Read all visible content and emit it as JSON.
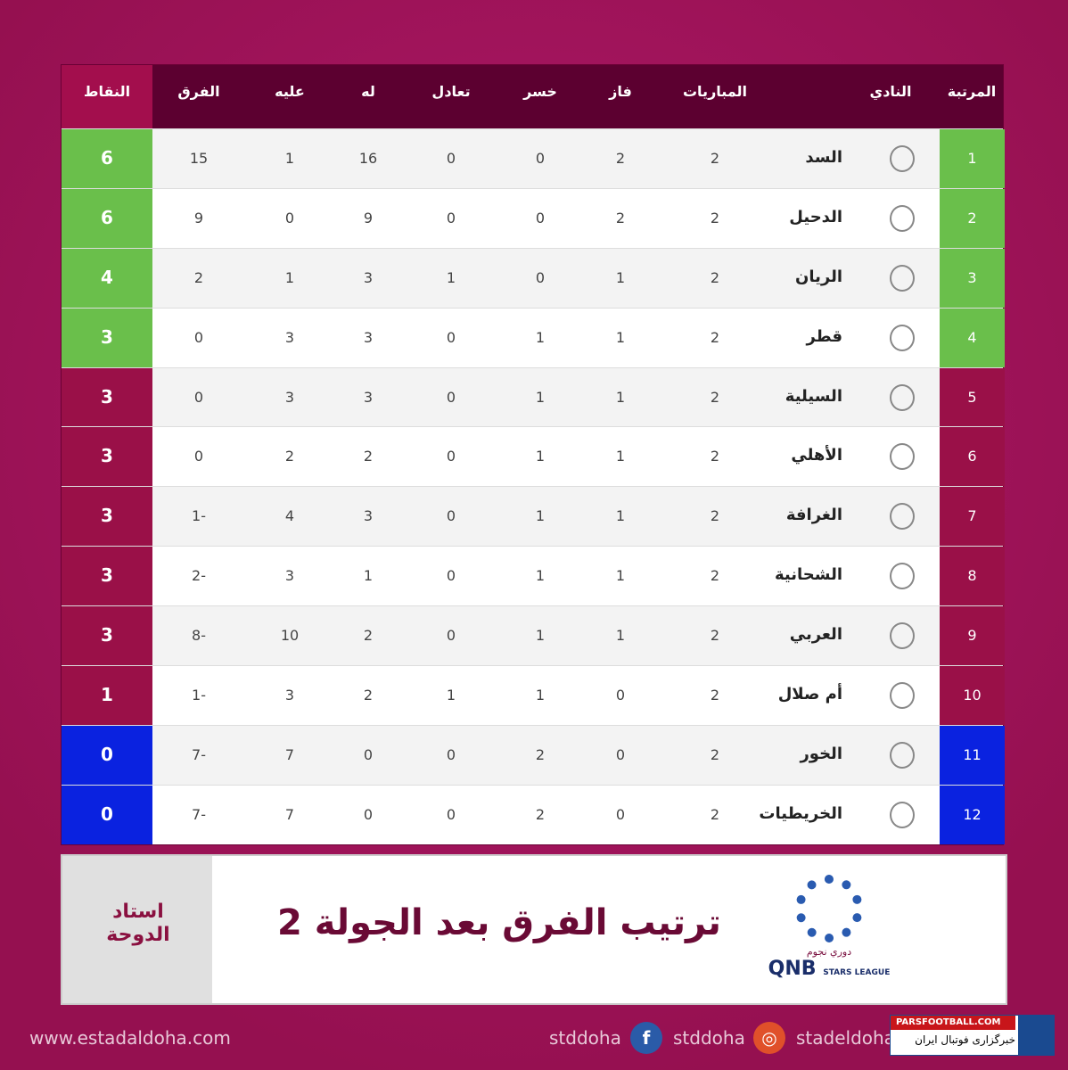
{
  "header": {
    "rank": "المرتبة",
    "club": "النادي",
    "played": "المباريات",
    "won": "فاز",
    "lost": "خسر",
    "draw": "تعادل",
    "for": "له",
    "against": "عليه",
    "diff": "الفرق",
    "points": "النقاط"
  },
  "colors": {
    "green": "#6abf4b",
    "maroon": "#9a1048",
    "blue": "#0a22e0"
  },
  "rows": [
    {
      "rank": "1",
      "club": "السد",
      "played": "2",
      "won": "2",
      "lost": "0",
      "draw": "0",
      "for": "16",
      "against": "1",
      "diff": "15",
      "points": "6",
      "zone": "green"
    },
    {
      "rank": "2",
      "club": "الدحيل",
      "played": "2",
      "won": "2",
      "lost": "0",
      "draw": "0",
      "for": "9",
      "against": "0",
      "diff": "9",
      "points": "6",
      "zone": "green"
    },
    {
      "rank": "3",
      "club": "الريان",
      "played": "2",
      "won": "1",
      "lost": "0",
      "draw": "1",
      "for": "3",
      "against": "1",
      "diff": "2",
      "points": "4",
      "zone": "green"
    },
    {
      "rank": "4",
      "club": "قطر",
      "played": "2",
      "won": "1",
      "lost": "1",
      "draw": "0",
      "for": "3",
      "against": "3",
      "diff": "0",
      "points": "3",
      "zone": "green"
    },
    {
      "rank": "5",
      "club": "السيلية",
      "played": "2",
      "won": "1",
      "lost": "1",
      "draw": "0",
      "for": "3",
      "against": "3",
      "diff": "0",
      "points": "3",
      "zone": "maroon"
    },
    {
      "rank": "6",
      "club": "الأهلي",
      "played": "2",
      "won": "1",
      "lost": "1",
      "draw": "0",
      "for": "2",
      "against": "2",
      "diff": "0",
      "points": "3",
      "zone": "maroon"
    },
    {
      "rank": "7",
      "club": "الغرافة",
      "played": "2",
      "won": "1",
      "lost": "1",
      "draw": "0",
      "for": "3",
      "against": "4",
      "diff": "1-",
      "points": "3",
      "zone": "maroon"
    },
    {
      "rank": "8",
      "club": "الشحانية",
      "played": "2",
      "won": "1",
      "lost": "1",
      "draw": "0",
      "for": "1",
      "against": "3",
      "diff": "2-",
      "points": "3",
      "zone": "maroon"
    },
    {
      "rank": "9",
      "club": "العربي",
      "played": "2",
      "won": "1",
      "lost": "1",
      "draw": "0",
      "for": "2",
      "against": "10",
      "diff": "8-",
      "points": "3",
      "zone": "maroon"
    },
    {
      "rank": "10",
      "club": "أم صلال",
      "played": "2",
      "won": "0",
      "lost": "1",
      "draw": "1",
      "for": "2",
      "against": "3",
      "diff": "1-",
      "points": "1",
      "zone": "maroon"
    },
    {
      "rank": "11",
      "club": "الخور",
      "played": "2",
      "won": "0",
      "lost": "2",
      "draw": "0",
      "for": "0",
      "against": "7",
      "diff": "7-",
      "points": "0",
      "zone": "blue"
    },
    {
      "rank": "12",
      "club": "الخريطيات",
      "played": "2",
      "won": "0",
      "lost": "2",
      "draw": "0",
      "for": "0",
      "against": "7",
      "diff": "7-",
      "points": "0",
      "zone": "blue"
    }
  ],
  "banner": {
    "title": "ترتيب الفرق بعد الجولة 2",
    "side_logo": "استاد الدوحة",
    "league_ar": "دوري نجوم",
    "league_en": "QNB",
    "league_sub": "STARS LEAGUE"
  },
  "footer": {
    "site": "www.estadaldoha.com",
    "handles": [
      "stddoha",
      "stddoha",
      "stadeldoha"
    ]
  },
  "watermark": {
    "top": "PARSFOOTBALL.COM",
    "bottom": "خبرگزاری فوتبال ایران"
  }
}
